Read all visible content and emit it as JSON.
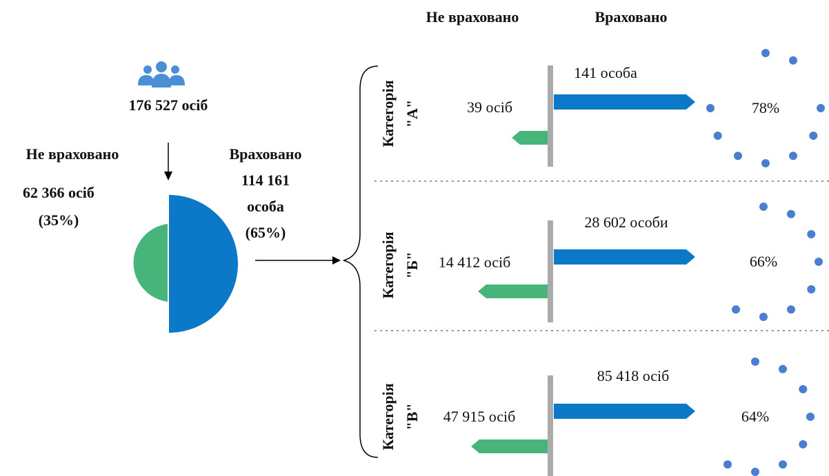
{
  "header": {
    "not_counted": "Не враховано",
    "counted": "Враховано"
  },
  "total": {
    "label": "176 527 осіб"
  },
  "not_counted": {
    "title": "Не враховано",
    "lines": [
      "62 366 осіб",
      "(35%)"
    ]
  },
  "counted": {
    "title": "Враховано",
    "lines": [
      "114 161",
      "особа",
      "(65%)"
    ]
  },
  "categories": [
    {
      "name": [
        "Категорія",
        "\"А\""
      ],
      "not_counted": "39 осіб",
      "counted": "141 особа",
      "share": "78%"
    },
    {
      "name": [
        "Категорія",
        "\"Б\""
      ],
      "not_counted": "14 412 осіб",
      "counted": "28 602 особи",
      "share": "66%"
    },
    {
      "name": [
        "Категорія",
        "\"В\""
      ],
      "not_counted": "47 915 осіб",
      "counted": "85 418 осіб",
      "share": "64%"
    }
  ]
}
